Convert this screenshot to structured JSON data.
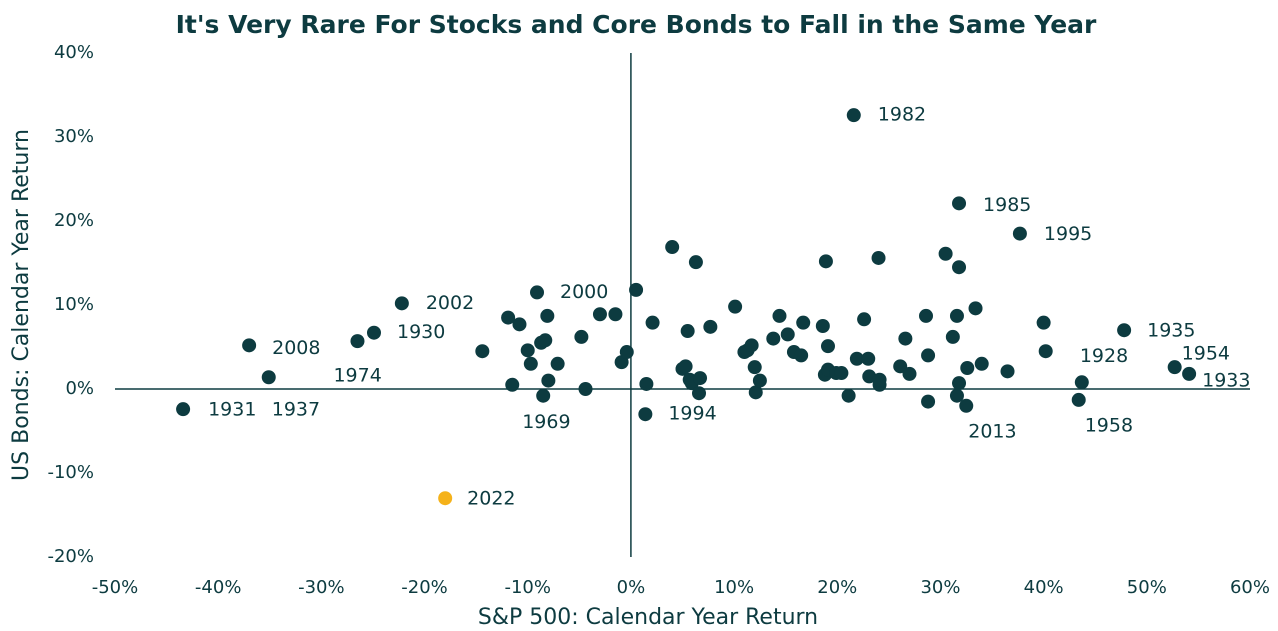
{
  "chart_data": {
    "type": "scatter",
    "title": "It's Very Rare For Stocks and Core Bonds to Fall in the Same Year",
    "x_label": "S&P 500: Calendar Year Return",
    "y_label": "US Bonds: Calendar Year Return",
    "xlim": [
      -50,
      60
    ],
    "ylim": [
      -20,
      40
    ],
    "xticks": [
      {
        "value": -50,
        "label": "-50%"
      },
      {
        "value": -40,
        "label": "-40%"
      },
      {
        "value": -30,
        "label": "-30%"
      },
      {
        "value": -20,
        "label": "-20%"
      },
      {
        "value": -10,
        "label": "-10%"
      },
      {
        "value": 0,
        "label": "0%"
      },
      {
        "value": 10,
        "label": "10%"
      },
      {
        "value": 20,
        "label": "20%"
      },
      {
        "value": 30,
        "label": "30%"
      },
      {
        "value": 40,
        "label": "40%"
      },
      {
        "value": 50,
        "label": "50%"
      },
      {
        "value": 60,
        "label": "60%"
      }
    ],
    "yticks": [
      {
        "value": -20,
        "label": "-20%"
      },
      {
        "value": -10,
        "label": "-10%"
      },
      {
        "value": 0,
        "label": "0%"
      },
      {
        "value": 10,
        "label": "10%"
      },
      {
        "value": 20,
        "label": "20%"
      },
      {
        "value": 30,
        "label": "30%"
      },
      {
        "value": 40,
        "label": "40%"
      }
    ],
    "series": [
      {
        "color": "#0d3b40",
        "x": [
          -43.4,
          -35.1,
          -37.0,
          -26.5,
          -24.9,
          -22.2,
          -9.1,
          -8.5,
          1.4,
          21.6,
          31.8,
          37.7,
          47.8,
          52.7,
          54.1,
          43.7,
          43.4,
          32.5,
          -14.4,
          -11.9,
          -10.8,
          -11.5,
          -10.0,
          -9.7,
          -8.7,
          -8.3,
          -8.1,
          -8.0,
          -7.1,
          -4.8,
          -4.4,
          -3.0,
          -1.5,
          -0.9,
          -0.4,
          0.5,
          1.5,
          2.1,
          4.0,
          5.0,
          5.3,
          5.5,
          5.7,
          5.9,
          6.3,
          6.7,
          6.6,
          7.7,
          10.1,
          11.0,
          11.3,
          11.7,
          12.0,
          12.1,
          12.5,
          13.8,
          14.4,
          15.2,
          15.8,
          16.5,
          16.7,
          18.6,
          18.8,
          18.9,
          19.1,
          19.1,
          19.9,
          20.4,
          21.1,
          21.9,
          22.6,
          23.0,
          23.1,
          24.0,
          24.1,
          24.1,
          26.1,
          26.6,
          27.0,
          28.6,
          28.8,
          28.8,
          30.5,
          31.2,
          31.6,
          31.6,
          31.8,
          31.8,
          32.6,
          33.4,
          34.0,
          36.5,
          40.0,
          40.2
        ],
        "y": [
          -2.4,
          1.4,
          5.2,
          5.7,
          6.7,
          10.2,
          11.5,
          -0.8,
          -3.0,
          32.6,
          22.1,
          18.5,
          7.0,
          2.6,
          1.8,
          0.8,
          -1.3,
          -2.0,
          4.5,
          8.5,
          7.7,
          0.5,
          4.6,
          3.0,
          5.5,
          5.8,
          8.7,
          1.0,
          3.0,
          6.2,
          0.0,
          8.9,
          8.9,
          3.2,
          4.4,
          11.8,
          0.6,
          7.9,
          16.9,
          2.4,
          2.7,
          6.9,
          1.1,
          0.7,
          15.1,
          1.3,
          -0.5,
          7.4,
          9.8,
          4.4,
          4.6,
          5.2,
          2.6,
          -0.4,
          1.0,
          6.0,
          8.7,
          6.5,
          4.4,
          4.0,
          7.9,
          7.5,
          1.7,
          15.2,
          2.3,
          5.1,
          1.9,
          1.9,
          -0.8,
          3.6,
          8.3,
          3.6,
          1.5,
          15.6,
          0.5,
          1.1,
          2.7,
          6.0,
          1.8,
          8.7,
          4.0,
          -1.5,
          16.1,
          6.2,
          8.7,
          -0.8,
          0.7,
          14.5,
          2.5,
          9.6,
          3.0,
          2.1,
          7.9,
          4.5
        ],
        "labels": [
          "1931",
          "1937",
          "2008",
          "1974",
          "1930",
          "2002",
          "2000",
          "1969",
          "1994",
          "1982",
          "1985",
          "1995",
          "1935",
          "1954",
          "1933",
          "1928",
          "1958",
          "2013",
          null,
          null,
          null,
          null,
          null,
          null,
          null,
          null,
          null,
          null,
          null,
          null,
          null,
          null,
          null,
          null,
          null,
          null,
          null,
          null,
          null,
          null,
          null,
          null,
          null,
          null,
          null,
          null,
          null,
          null,
          null,
          null,
          null,
          null,
          null,
          null,
          null,
          null,
          null,
          null,
          null,
          null,
          null,
          null,
          null,
          null,
          null,
          null,
          null,
          null,
          null,
          null,
          null,
          null,
          null,
          null,
          null,
          null,
          null,
          null,
          null,
          null,
          null,
          null,
          null,
          null,
          null,
          null,
          null,
          null,
          null,
          null,
          null,
          null,
          null,
          null
        ]
      },
      {
        "color": "#f5b21a",
        "x": [
          -18.0
        ],
        "y": [
          -13.0
        ],
        "labels": [
          "2022"
        ]
      }
    ]
  }
}
